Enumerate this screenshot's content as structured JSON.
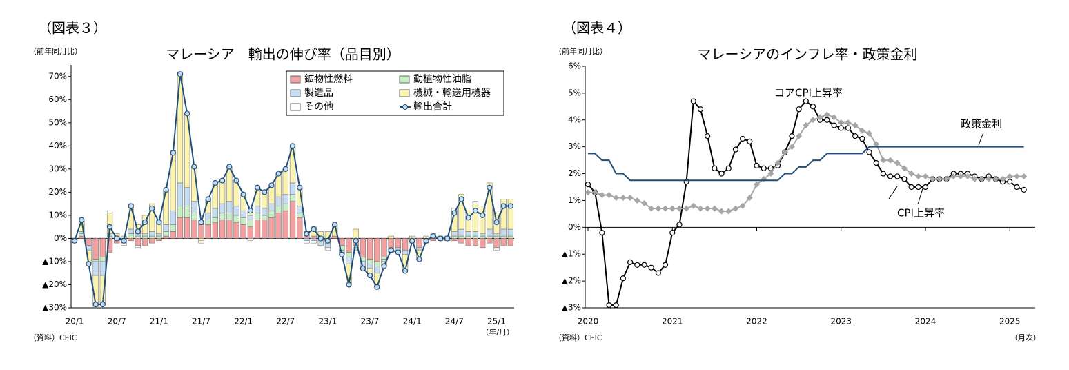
{
  "chart_data": [
    {
      "type": "bar",
      "stacked": true,
      "figure_label": "（図表３）",
      "title": "マレーシア　輸出の伸び率（品目別）",
      "unit_label": "（前年同月比）",
      "source": "（資料）CEIC",
      "x_unit": "（年/月）",
      "legend": "upper right",
      "grid": false,
      "categories": [
        "20/1",
        null,
        null,
        null,
        null,
        null,
        "20/7",
        null,
        null,
        null,
        null,
        null,
        "21/1",
        null,
        null,
        null,
        null,
        null,
        "21/7",
        null,
        null,
        null,
        null,
        null,
        "22/1",
        null,
        null,
        null,
        null,
        null,
        "22/7",
        null,
        null,
        null,
        null,
        null,
        "23/1",
        null,
        null,
        null,
        null,
        null,
        "23/7",
        null,
        null,
        null,
        null,
        null,
        "24/1",
        null,
        null,
        null,
        null,
        null,
        "24/7",
        null,
        null,
        null,
        null,
        null,
        "25/1",
        null,
        null
      ],
      "ylim": [
        -30,
        75
      ],
      "yticks": [
        {
          "value": -30,
          "label": "▲30%"
        },
        {
          "value": -20,
          "label": "▲20%"
        },
        {
          "value": -10,
          "label": "▲10%"
        },
        {
          "value": 0,
          "label": "0%"
        },
        {
          "value": 10,
          "label": "10%"
        },
        {
          "value": 20,
          "label": "20%"
        },
        {
          "value": 30,
          "label": "30%"
        },
        {
          "value": 40,
          "label": "40%"
        },
        {
          "value": 50,
          "label": "50%"
        },
        {
          "value": 60,
          "label": "60%"
        },
        {
          "value": 70,
          "label": "70%"
        }
      ],
      "series": [
        {
          "name": "鉱物性燃料",
          "color": "#f3a0a0",
          "values": [
            -1,
            1,
            -3,
            -9,
            -8,
            -6,
            -2,
            -2,
            -1,
            -3,
            -3,
            -2,
            -1,
            1,
            3,
            9,
            9,
            8,
            6,
            6,
            7,
            8,
            8,
            7,
            6,
            5,
            8,
            8,
            9,
            11,
            12,
            16,
            9,
            3,
            1,
            0,
            -1,
            1,
            -3,
            -6,
            -3,
            -8,
            -9,
            -10,
            -8,
            -5,
            -4,
            -5,
            -2,
            -4,
            -2,
            -1,
            -1,
            -1,
            -1,
            -2,
            -3,
            -3,
            -4,
            -2,
            -4,
            -3,
            -3
          ]
        },
        {
          "name": "動植物性油脂",
          "color": "#c6efc6",
          "values": [
            0,
            1,
            0,
            -1,
            -2,
            1,
            1,
            1,
            2,
            1,
            1,
            1,
            1,
            2,
            3,
            5,
            5,
            3,
            1,
            2,
            2,
            3,
            3,
            3,
            3,
            3,
            3,
            2,
            3,
            3,
            3,
            3,
            2,
            0,
            0,
            -1,
            -1,
            0,
            -2,
            -2,
            -1,
            -2,
            -2,
            -2,
            -1,
            0,
            0,
            0,
            0,
            0,
            0,
            1,
            1,
            1,
            1,
            1,
            1,
            1,
            1,
            1,
            1,
            1,
            1
          ]
        },
        {
          "name": "製造品",
          "color": "#c5dcf2",
          "values": [
            0,
            1,
            -2,
            -6,
            -6,
            1,
            0,
            0,
            2,
            1,
            1,
            2,
            1,
            3,
            6,
            10,
            8,
            5,
            1,
            3,
            4,
            4,
            5,
            4,
            3,
            2,
            3,
            3,
            3,
            4,
            4,
            5,
            3,
            -1,
            -1,
            -2,
            -2,
            0,
            -1,
            -3,
            -1,
            -2,
            -2,
            -3,
            -1,
            -1,
            -1,
            -2,
            0,
            -1,
            0,
            0,
            0,
            0,
            2,
            3,
            2,
            2,
            1,
            3,
            1,
            3,
            3
          ]
        },
        {
          "name": "機械・輸送用機器",
          "color": "#fbf3b0",
          "values": [
            0,
            5,
            -6,
            -12.5,
            -12.5,
            9,
            1,
            0,
            11,
            4,
            8,
            12,
            6,
            15,
            25,
            47,
            32,
            15,
            -1,
            6,
            11,
            10,
            15,
            11,
            7,
            2,
            8,
            7,
            8,
            10,
            11,
            16,
            8,
            0,
            4,
            3,
            3,
            5,
            -1,
            -9,
            4,
            -1,
            -3,
            -6,
            -2,
            1,
            -1,
            -7,
            1,
            -4,
            1,
            1,
            0,
            0,
            9,
            15,
            9,
            12,
            12,
            20,
            9,
            13,
            13
          ]
        },
        {
          "name": "その他",
          "color": "#ffffff",
          "values": [
            0,
            0,
            0,
            -1,
            0,
            1,
            0,
            -1,
            0,
            -1,
            0,
            0,
            0,
            0,
            1,
            1,
            0,
            0,
            -1,
            0,
            0,
            0,
            0,
            0,
            0,
            -1,
            0,
            0,
            0,
            0,
            0,
            0,
            0,
            -1,
            -1,
            0,
            -1,
            0,
            0,
            0,
            0,
            0,
            0,
            0,
            0,
            0,
            0,
            0,
            0,
            0,
            0,
            0,
            0,
            0,
            1,
            0,
            0,
            1,
            0,
            0,
            -1,
            0,
            0
          ]
        },
        {
          "name": "輸出合計",
          "type": "line",
          "color": "#1f4e79",
          "values": [
            -1,
            8,
            -11,
            -28.5,
            -28.5,
            5,
            0,
            -1,
            14,
            3,
            7,
            13,
            7,
            21,
            37,
            71,
            54,
            31,
            7,
            17,
            24,
            25,
            31,
            25,
            19,
            12,
            22,
            20,
            23,
            28,
            30,
            40,
            22,
            2,
            4,
            0,
            -1,
            6,
            -7,
            -20,
            -1,
            -13,
            -16,
            -21,
            -12,
            -5,
            -6,
            -14,
            -1,
            -9,
            -1,
            1,
            0,
            0,
            11,
            17,
            9,
            12,
            10,
            22,
            7,
            14,
            14
          ]
        }
      ]
    },
    {
      "type": "line",
      "figure_label": "（図表４）",
      "title": "マレーシアのインフレ率・政策金利",
      "unit_label": "（前年同月比）",
      "source": "（資料）CEIC",
      "x_unit": "（月次）",
      "grid": false,
      "categories": [
        "2020",
        null,
        null,
        null,
        null,
        null,
        null,
        null,
        null,
        null,
        null,
        null,
        "2021",
        null,
        null,
        null,
        null,
        null,
        null,
        null,
        null,
        null,
        null,
        null,
        "2022",
        null,
        null,
        null,
        null,
        null,
        null,
        null,
        null,
        null,
        null,
        null,
        "2023",
        null,
        null,
        null,
        null,
        null,
        null,
        null,
        null,
        null,
        null,
        null,
        "2024",
        null,
        null,
        null,
        null,
        null,
        null,
        null,
        null,
        null,
        null,
        null,
        "2025",
        null,
        null
      ],
      "ylim": [
        -3,
        6
      ],
      "yticks": [
        {
          "value": -3,
          "label": "▲3%"
        },
        {
          "value": -2,
          "label": "▲2%"
        },
        {
          "value": -1,
          "label": "▲1%"
        },
        {
          "value": 0,
          "label": "0%"
        },
        {
          "value": 1,
          "label": "1%"
        },
        {
          "value": 2,
          "label": "2%"
        },
        {
          "value": 3,
          "label": "3%"
        },
        {
          "value": 4,
          "label": "4%"
        },
        {
          "value": 5,
          "label": "5%"
        },
        {
          "value": 6,
          "label": "6%"
        }
      ],
      "series": [
        {
          "name": "CPI上昇率",
          "color": "#000000",
          "marker": "circle",
          "values": [
            1.6,
            1.3,
            -0.2,
            -2.9,
            -2.9,
            -1.9,
            -1.3,
            -1.4,
            -1.4,
            -1.5,
            -1.7,
            -1.4,
            -0.2,
            0.1,
            1.7,
            4.7,
            4.4,
            3.4,
            2.2,
            2.0,
            2.2,
            2.9,
            3.3,
            3.2,
            2.3,
            2.2,
            2.2,
            2.3,
            2.8,
            3.4,
            4.4,
            4.7,
            4.5,
            4.0,
            4.0,
            3.8,
            3.7,
            3.7,
            3.4,
            3.3,
            2.8,
            2.4,
            2.0,
            1.9,
            1.9,
            1.8,
            1.5,
            1.5,
            1.5,
            1.8,
            1.8,
            1.8,
            2.0,
            2.0,
            2.0,
            1.9,
            1.8,
            1.9,
            1.8,
            1.7,
            1.7,
            1.5,
            1.4
          ]
        },
        {
          "name": "コアCPI上昇率",
          "color": "#a6a6a6",
          "marker": "diamond",
          "values": [
            1.3,
            1.3,
            1.2,
            1.2,
            1.1,
            1.1,
            1.1,
            1.0,
            0.9,
            0.7,
            0.7,
            0.7,
            0.7,
            0.7,
            0.7,
            0.8,
            0.7,
            0.7,
            0.7,
            0.6,
            0.6,
            0.7,
            0.8,
            1.1,
            1.6,
            1.8,
            2.0,
            2.4,
            2.8,
            3.0,
            3.4,
            3.8,
            4.0,
            4.1,
            4.2,
            4.1,
            3.9,
            3.9,
            3.8,
            3.6,
            3.5,
            3.1,
            2.5,
            2.5,
            2.4,
            2.2,
            2.0,
            1.9,
            1.9,
            1.8,
            1.8,
            1.8,
            1.9,
            1.9,
            1.9,
            1.8,
            1.8,
            1.8,
            1.8,
            1.8,
            1.9,
            1.9,
            1.9
          ]
        },
        {
          "name": "政策金利",
          "color": "#1f4e79",
          "values": [
            2.75,
            2.75,
            2.5,
            2.5,
            2.0,
            2.0,
            1.75,
            1.75,
            1.75,
            1.75,
            1.75,
            1.75,
            1.75,
            1.75,
            1.75,
            1.75,
            1.75,
            1.75,
            1.75,
            1.75,
            1.75,
            1.75,
            1.75,
            1.75,
            1.75,
            1.75,
            1.75,
            1.75,
            2.0,
            2.0,
            2.25,
            2.25,
            2.5,
            2.5,
            2.75,
            2.75,
            2.75,
            2.75,
            2.75,
            2.75,
            3.0,
            3.0,
            3.0,
            3.0,
            3.0,
            3.0,
            3.0,
            3.0,
            3.0,
            3.0,
            3.0,
            3.0,
            3.0,
            3.0,
            3.0,
            3.0,
            3.0,
            3.0,
            3.0,
            3.0,
            3.0,
            3.0,
            3.0
          ]
        }
      ]
    }
  ]
}
